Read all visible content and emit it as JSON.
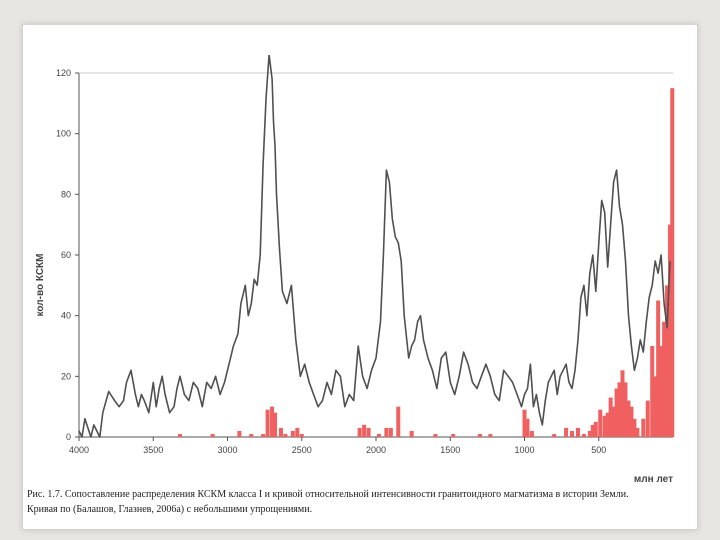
{
  "caption": {
    "line1": "Рис. 1.7. Сопоставление распределения КСКМ класса I и кривой относительной интенсивности гранитоидного магматизма в истории Земли.",
    "line2": "Кривая по (Балашов, Глазнев, 2006а) с небольшими упрощениями."
  },
  "chart_data": {
    "type": "bar",
    "ylabel": "кол-во КСКМ",
    "xunit": "млн лет",
    "xlim": [
      4000,
      0
    ],
    "ylim": [
      0,
      120
    ],
    "x_ticks": [
      4000,
      3500,
      3000,
      2500,
      2000,
      1500,
      1000,
      500
    ],
    "y_ticks": [
      0,
      20,
      40,
      60,
      80,
      100,
      120
    ],
    "colors": {
      "bars": "#f06060",
      "curve": "#505050",
      "axis": "#555555"
    },
    "series": [
      {
        "kind": "bar",
        "age_ma": [
          3320,
          3100,
          2920,
          2840,
          2760,
          2730,
          2700,
          2680,
          2640,
          2610,
          2560,
          2530,
          2500,
          2110,
          2080,
          2050,
          1980,
          1930,
          1900,
          1850,
          1760,
          1600,
          1480,
          1300,
          1230,
          1000,
          980,
          950,
          800,
          720,
          680,
          640,
          600,
          560,
          540,
          520,
          490,
          460,
          440,
          420,
          400,
          380,
          360,
          340,
          320,
          300,
          280,
          260,
          240,
          200,
          170,
          140,
          120,
          100,
          80,
          60,
          40,
          20,
          5
        ],
        "count": [
          1,
          1,
          2,
          1,
          1,
          9,
          10,
          8,
          3,
          1,
          2,
          3,
          1,
          3,
          4,
          3,
          1,
          3,
          3,
          10,
          2,
          1,
          1,
          1,
          1,
          9,
          6,
          2,
          1,
          3,
          2,
          3,
          1,
          2,
          4,
          5,
          9,
          7,
          8,
          13,
          10,
          16,
          18,
          22,
          18,
          12,
          10,
          6,
          3,
          6,
          12,
          30,
          20,
          45,
          30,
          38,
          50,
          70,
          115
        ]
      },
      {
        "kind": "line",
        "age_ma": [
          4000,
          3980,
          3960,
          3940,
          3920,
          3900,
          3880,
          3860,
          3840,
          3800,
          3760,
          3730,
          3700,
          3680,
          3650,
          3620,
          3600,
          3580,
          3560,
          3530,
          3500,
          3480,
          3460,
          3440,
          3420,
          3390,
          3360,
          3340,
          3320,
          3290,
          3260,
          3230,
          3200,
          3170,
          3140,
          3110,
          3080,
          3050,
          3020,
          2990,
          2960,
          2930,
          2910,
          2880,
          2860,
          2840,
          2820,
          2800,
          2780,
          2760,
          2740,
          2720,
          2700,
          2690,
          2680,
          2670,
          2650,
          2630,
          2600,
          2570,
          2540,
          2510,
          2480,
          2450,
          2420,
          2390,
          2360,
          2330,
          2300,
          2270,
          2240,
          2210,
          2180,
          2150,
          2120,
          2090,
          2060,
          2030,
          2000,
          1970,
          1950,
          1930,
          1910,
          1890,
          1870,
          1850,
          1830,
          1810,
          1780,
          1760,
          1740,
          1720,
          1700,
          1680,
          1650,
          1620,
          1590,
          1560,
          1530,
          1500,
          1470,
          1440,
          1410,
          1380,
          1350,
          1320,
          1290,
          1260,
          1230,
          1200,
          1170,
          1140,
          1110,
          1080,
          1050,
          1020,
          1000,
          980,
          960,
          940,
          920,
          900,
          880,
          860,
          840,
          820,
          800,
          780,
          760,
          740,
          720,
          700,
          680,
          660,
          640,
          620,
          600,
          580,
          560,
          540,
          520,
          500,
          480,
          460,
          440,
          420,
          400,
          380,
          360,
          340,
          320,
          300,
          280,
          260,
          240,
          220,
          200,
          180,
          160,
          140,
          120,
          100,
          80,
          60,
          40,
          20,
          10
        ],
        "value": [
          2,
          0,
          6,
          3,
          0,
          4,
          2,
          0,
          8,
          15,
          12,
          10,
          12,
          18,
          22,
          14,
          10,
          14,
          12,
          8,
          18,
          10,
          16,
          20,
          14,
          8,
          10,
          16,
          20,
          14,
          12,
          18,
          16,
          10,
          18,
          16,
          20,
          14,
          18,
          24,
          30,
          34,
          44,
          50,
          40,
          44,
          52,
          50,
          60,
          90,
          112,
          126,
          118,
          104,
          96,
          80,
          62,
          48,
          44,
          50,
          32,
          20,
          24,
          18,
          14,
          10,
          12,
          18,
          14,
          22,
          20,
          10,
          14,
          12,
          30,
          20,
          16,
          22,
          26,
          38,
          60,
          88,
          84,
          72,
          66,
          64,
          58,
          40,
          26,
          30,
          32,
          38,
          40,
          32,
          26,
          22,
          16,
          26,
          28,
          18,
          14,
          20,
          28,
          24,
          18,
          16,
          20,
          24,
          20,
          14,
          12,
          22,
          20,
          18,
          14,
          10,
          14,
          16,
          24,
          10,
          14,
          8,
          4,
          12,
          18,
          20,
          22,
          14,
          20,
          22,
          24,
          18,
          16,
          22,
          32,
          46,
          50,
          40,
          54,
          60,
          48,
          64,
          78,
          74,
          56,
          70,
          84,
          88,
          76,
          70,
          58,
          40,
          30,
          22,
          26,
          32,
          28,
          38,
          46,
          50,
          58,
          54,
          60,
          44,
          36,
          58
        ]
      }
    ]
  }
}
